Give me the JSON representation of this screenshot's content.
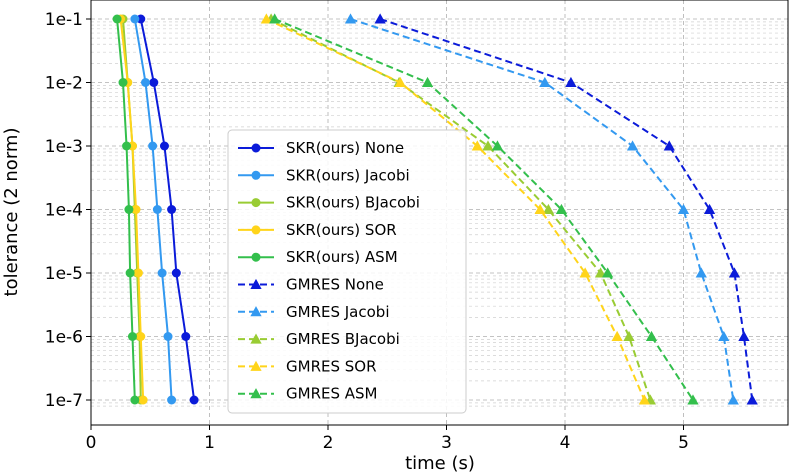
{
  "chart_data": {
    "type": "line",
    "xlabel": "time (s)",
    "ylabel": "tolerance (2 norm)",
    "xlim": [
      0,
      5.85
    ],
    "ylim": [
      1e-07,
      0.1
    ],
    "y_scale": "log",
    "grid": true,
    "legend_placement": "center-left",
    "x_ticks": [
      "0",
      "1",
      "2",
      "3",
      "4",
      "5"
    ],
    "y_ticks": [
      "1e-1",
      "1e-2",
      "1e-3",
      "1e-4",
      "1e-5",
      "1e-6",
      "1e-7"
    ],
    "y_values": [
      0.1,
      0.01,
      0.001,
      0.0001,
      1e-05,
      1e-06,
      1e-07
    ],
    "series": [
      {
        "name": "SKR(ours) None",
        "color": "#0b1bd9",
        "marker": "circle",
        "dash": "solid",
        "x": [
          0.42,
          0.53,
          0.62,
          0.68,
          0.72,
          0.8,
          0.87
        ]
      },
      {
        "name": "SKR(ours) Jacobi",
        "color": "#3399f0",
        "marker": "circle",
        "dash": "solid",
        "x": [
          0.37,
          0.46,
          0.52,
          0.56,
          0.6,
          0.65,
          0.68
        ]
      },
      {
        "name": "SKR(ours) BJacobi",
        "color": "#99cc33",
        "marker": "circle",
        "dash": "solid",
        "x": [
          0.27,
          0.31,
          0.35,
          0.37,
          0.39,
          0.41,
          0.42
        ]
      },
      {
        "name": "SKR(ours) SOR",
        "color": "#ffd41a",
        "marker": "circle",
        "dash": "solid",
        "x": [
          0.25,
          0.31,
          0.35,
          0.38,
          0.4,
          0.42,
          0.44
        ]
      },
      {
        "name": "SKR(ours) ASM",
        "color": "#33bf4c",
        "marker": "circle",
        "dash": "solid",
        "x": [
          0.22,
          0.27,
          0.3,
          0.32,
          0.33,
          0.35,
          0.37
        ]
      },
      {
        "name": "GMRES None",
        "color": "#0b1bd9",
        "marker": "triangle",
        "dash": "dashed",
        "x": [
          2.44,
          4.05,
          4.88,
          5.22,
          5.43,
          5.51,
          5.58
        ]
      },
      {
        "name": "GMRES Jacobi",
        "color": "#3399f0",
        "marker": "triangle",
        "dash": "dashed",
        "x": [
          2.19,
          3.83,
          4.57,
          5.0,
          5.15,
          5.34,
          5.42
        ]
      },
      {
        "name": "GMRES BJacobi",
        "color": "#99cc33",
        "marker": "triangle",
        "dash": "dashed",
        "x": [
          1.52,
          2.6,
          3.35,
          3.86,
          4.3,
          4.54,
          4.72
        ]
      },
      {
        "name": "GMRES SOR",
        "color": "#ffd41a",
        "marker": "triangle",
        "dash": "dashed",
        "x": [
          1.48,
          2.61,
          3.26,
          3.79,
          4.17,
          4.44,
          4.67
        ]
      },
      {
        "name": "GMRES ASM",
        "color": "#33bf4c",
        "marker": "triangle",
        "dash": "dashed",
        "x": [
          1.55,
          2.84,
          3.43,
          3.97,
          4.36,
          4.73,
          5.08
        ]
      }
    ]
  }
}
